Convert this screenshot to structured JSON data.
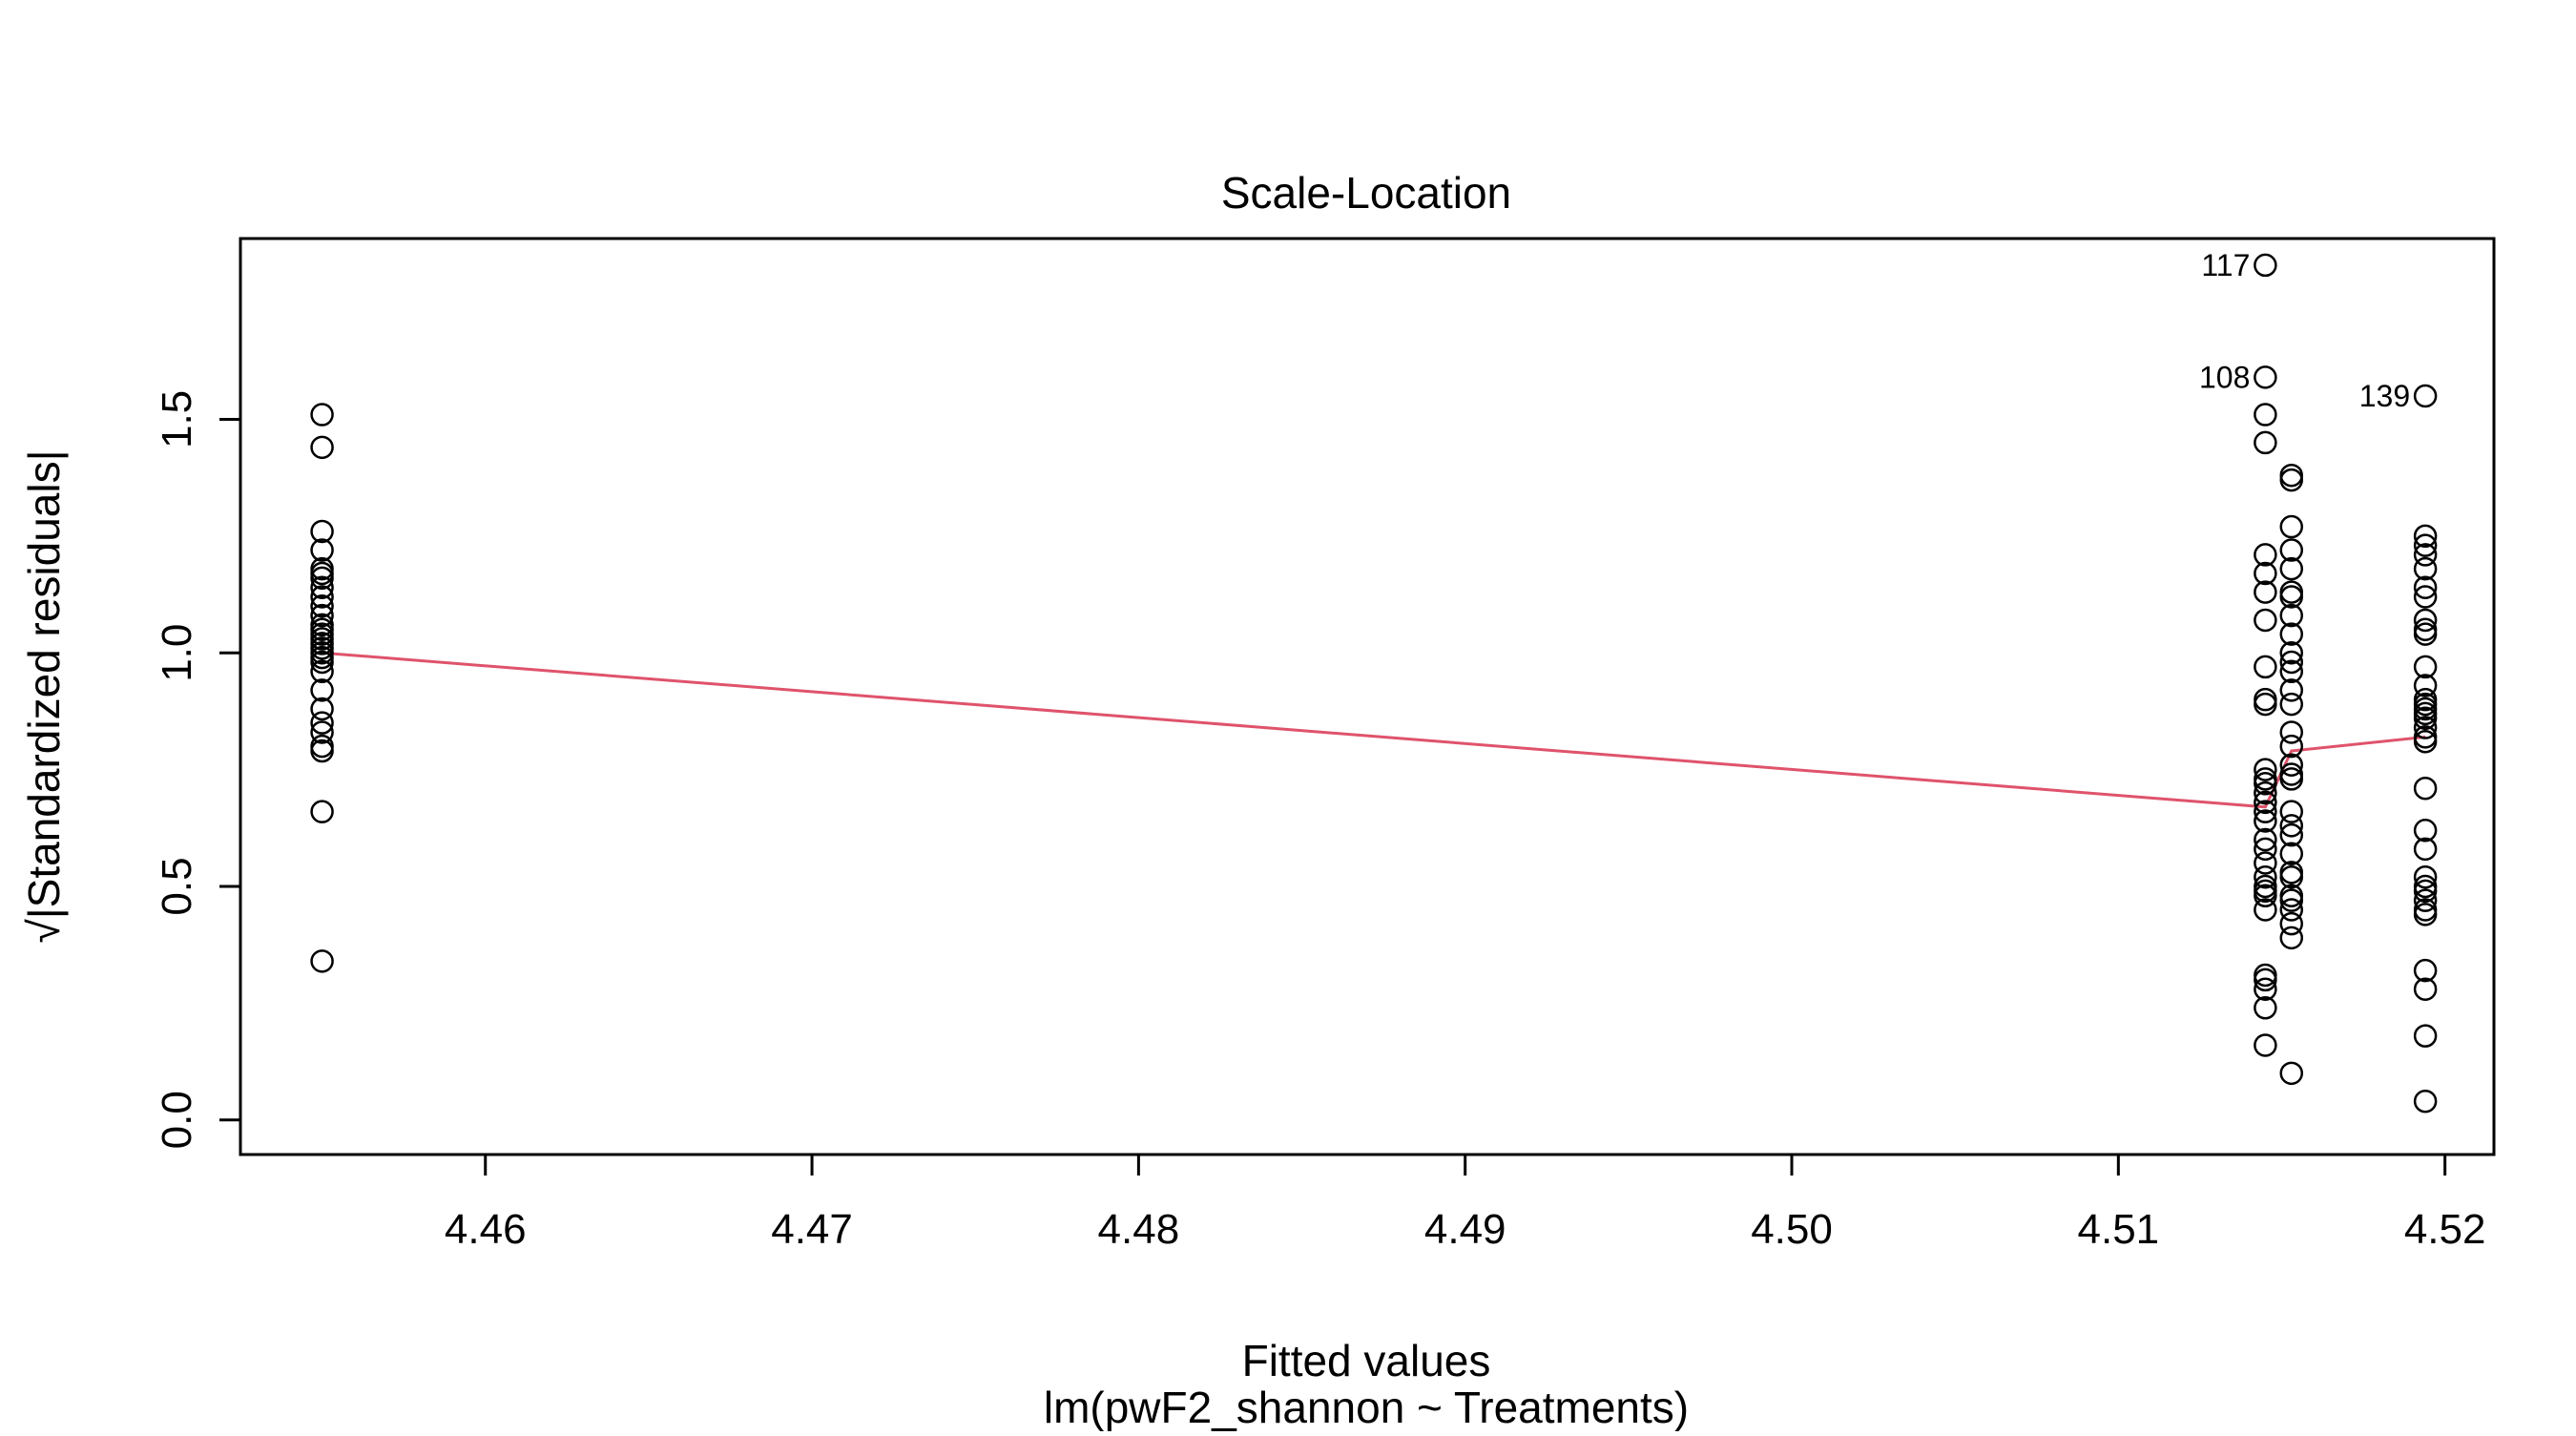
{
  "chart_data": {
    "type": "scatter",
    "title": "Scale-Location",
    "xlabel": "Fitted values",
    "subtitle": "lm(pwF2_shannon ~ Treatments)",
    "ylabel": "√|Standardized residuals|",
    "xlim": [
      4.4525,
      4.5215
    ],
    "ylim": [
      -0.074,
      1.887
    ],
    "x_ticks": [
      4.46,
      4.47,
      4.48,
      4.49,
      4.5,
      4.51,
      4.52
    ],
    "x_tick_labels": [
      "4.46",
      "4.47",
      "4.48",
      "4.49",
      "4.50",
      "4.51",
      "4.52"
    ],
    "y_ticks": [
      0.0,
      0.5,
      1.0,
      1.5
    ],
    "y_tick_labels": [
      "0.0",
      "0.5",
      "1.0",
      "1.5"
    ],
    "grid": false,
    "legend": "none",
    "colors": {
      "points": "#000000",
      "smoother": "#DF536B",
      "frame": "#000000"
    },
    "series": [
      {
        "x": 4.455,
        "y": [
          1.51,
          1.44,
          1.26,
          1.22,
          1.18,
          1.17,
          1.16,
          1.14,
          1.12,
          1.1,
          1.08,
          1.06,
          1.05,
          1.04,
          1.03,
          1.02,
          1.01,
          1.0,
          0.99,
          0.98,
          0.96,
          0.92,
          0.88,
          0.85,
          0.83,
          0.8,
          0.79,
          0.66,
          0.34
        ]
      },
      {
        "x": 4.5145,
        "y": [
          1.83,
          1.59,
          1.51,
          1.45,
          1.21,
          1.17,
          1.13,
          1.07,
          0.97,
          0.9,
          0.89,
          0.75,
          0.73,
          0.72,
          0.7,
          0.68,
          0.66,
          0.64,
          0.6,
          0.58,
          0.55,
          0.52,
          0.5,
          0.49,
          0.48,
          0.45,
          0.31,
          0.3,
          0.28,
          0.24,
          0.16
        ]
      },
      {
        "x": 4.5153,
        "y": [
          1.38,
          1.37,
          1.27,
          1.22,
          1.18,
          1.13,
          1.12,
          1.08,
          1.04,
          1.0,
          0.98,
          0.96,
          0.92,
          0.89,
          0.83,
          0.8,
          0.76,
          0.74,
          0.73,
          0.66,
          0.63,
          0.61,
          0.57,
          0.53,
          0.52,
          0.48,
          0.47,
          0.45,
          0.42,
          0.39,
          0.1
        ]
      },
      {
        "x": 4.5194,
        "y": [
          1.55,
          1.25,
          1.23,
          1.21,
          1.18,
          1.14,
          1.12,
          1.07,
          1.05,
          1.04,
          0.97,
          0.93,
          0.9,
          0.89,
          0.88,
          0.87,
          0.86,
          0.84,
          0.82,
          0.81,
          0.71,
          0.62,
          0.58,
          0.52,
          0.5,
          0.49,
          0.47,
          0.45,
          0.44,
          0.32,
          0.28,
          0.18,
          0.04
        ]
      }
    ],
    "smoother": [
      {
        "x": 4.455,
        "y": 1.0
      },
      {
        "x": 4.5145,
        "y": 0.67
      },
      {
        "x": 4.5153,
        "y": 0.79
      },
      {
        "x": 4.5194,
        "y": 0.82
      }
    ],
    "annotations": [
      {
        "label": "117",
        "x": 4.5145,
        "y": 1.83
      },
      {
        "label": "108",
        "x": 4.5145,
        "y": 1.59
      },
      {
        "label": "139",
        "x": 4.5194,
        "y": 1.55
      }
    ]
  }
}
